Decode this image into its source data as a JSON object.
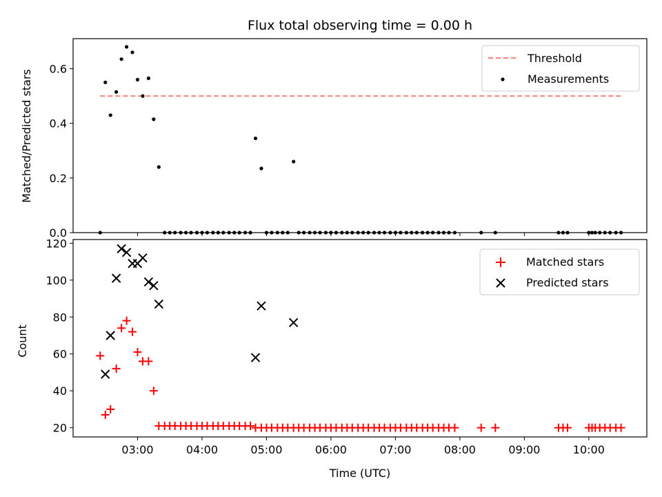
{
  "chart_data": [
    {
      "type": "scatter",
      "title": "Flux total observing time = 0.00 h",
      "xlabel": "",
      "ylabel": "Matched/Predicted stars",
      "xlim": [
        2.0,
        10.9
      ],
      "ylim": [
        0.0,
        0.71
      ],
      "yticks": [
        {
          "v": 0.0,
          "label": "0.0"
        },
        {
          "v": 0.2,
          "label": "0.2"
        },
        {
          "v": 0.4,
          "label": "0.4"
        },
        {
          "v": 0.6,
          "label": "0.6"
        }
      ],
      "legend_position": "upper right",
      "threshold": {
        "name": "Threshold",
        "value": 0.5,
        "x_start": 2.42,
        "x_end": 10.52,
        "color": "#ff7f7f"
      },
      "measurements": {
        "name": "Measurements",
        "color": "#000000",
        "points": [
          [
            2.42,
            0.0
          ],
          [
            2.5,
            0.55
          ],
          [
            2.58,
            0.43
          ],
          [
            2.67,
            0.515
          ],
          [
            2.75,
            0.635
          ],
          [
            2.83,
            0.68
          ],
          [
            2.92,
            0.66
          ],
          [
            3.0,
            0.56
          ],
          [
            3.08,
            0.5
          ],
          [
            3.17,
            0.565
          ],
          [
            3.25,
            0.415
          ],
          [
            3.33,
            0.24
          ],
          [
            3.42,
            0.0
          ],
          [
            3.5,
            0.0
          ],
          [
            3.58,
            0.0
          ],
          [
            3.67,
            0.0
          ],
          [
            3.75,
            0.0
          ],
          [
            3.83,
            0.0
          ],
          [
            3.92,
            0.0
          ],
          [
            4.0,
            0.0
          ],
          [
            4.08,
            0.0
          ],
          [
            4.17,
            0.0
          ],
          [
            4.25,
            0.0
          ],
          [
            4.33,
            0.0
          ],
          [
            4.42,
            0.0
          ],
          [
            4.5,
            0.0
          ],
          [
            4.58,
            0.0
          ],
          [
            4.67,
            0.0
          ],
          [
            4.75,
            0.0
          ],
          [
            4.83,
            0.345
          ],
          [
            4.92,
            0.235
          ],
          [
            5.0,
            0.0
          ],
          [
            5.08,
            0.0
          ],
          [
            5.17,
            0.0
          ],
          [
            5.25,
            0.0
          ],
          [
            5.33,
            0.0
          ],
          [
            5.42,
            0.26
          ],
          [
            5.5,
            0.0
          ],
          [
            5.58,
            0.0
          ],
          [
            5.67,
            0.0
          ],
          [
            5.75,
            0.0
          ],
          [
            5.83,
            0.0
          ],
          [
            5.92,
            0.0
          ],
          [
            6.0,
            0.0
          ],
          [
            6.08,
            0.0
          ],
          [
            6.17,
            0.0
          ],
          [
            6.25,
            0.0
          ],
          [
            6.33,
            0.0
          ],
          [
            6.42,
            0.0
          ],
          [
            6.5,
            0.0
          ],
          [
            6.58,
            0.0
          ],
          [
            6.67,
            0.0
          ],
          [
            6.75,
            0.0
          ],
          [
            6.83,
            0.0
          ],
          [
            6.92,
            0.0
          ],
          [
            7.0,
            0.0
          ],
          [
            7.08,
            0.0
          ],
          [
            7.17,
            0.0
          ],
          [
            7.25,
            0.0
          ],
          [
            7.33,
            0.0
          ],
          [
            7.42,
            0.0
          ],
          [
            7.5,
            0.0
          ],
          [
            7.58,
            0.0
          ],
          [
            7.67,
            0.0
          ],
          [
            7.75,
            0.0
          ],
          [
            7.83,
            0.0
          ],
          [
            7.92,
            0.0
          ],
          [
            8.33,
            0.0
          ],
          [
            8.55,
            0.0
          ],
          [
            9.53,
            0.0
          ],
          [
            9.6,
            0.0
          ],
          [
            9.67,
            0.0
          ],
          [
            10.0,
            0.0
          ],
          [
            10.05,
            0.0
          ],
          [
            10.1,
            0.0
          ],
          [
            10.17,
            0.0
          ],
          [
            10.25,
            0.0
          ],
          [
            10.33,
            0.0
          ],
          [
            10.42,
            0.0
          ],
          [
            10.5,
            0.0
          ]
        ]
      }
    },
    {
      "type": "scatter",
      "title": "",
      "xlabel": "Time (UTC)",
      "ylabel": "Count",
      "xlim": [
        2.0,
        10.9
      ],
      "ylim": [
        15.0,
        122.0
      ],
      "yticks": [
        {
          "v": 20,
          "label": "20"
        },
        {
          "v": 40,
          "label": "40"
        },
        {
          "v": 60,
          "label": "60"
        },
        {
          "v": 80,
          "label": "80"
        },
        {
          "v": 100,
          "label": "100"
        },
        {
          "v": 120,
          "label": "120"
        }
      ],
      "xticks": [
        {
          "v": 3,
          "label": "03:00"
        },
        {
          "v": 4,
          "label": "04:00"
        },
        {
          "v": 5,
          "label": "05:00"
        },
        {
          "v": 6,
          "label": "06:00"
        },
        {
          "v": 7,
          "label": "07:00"
        },
        {
          "v": 8,
          "label": "08:00"
        },
        {
          "v": 9,
          "label": "09:00"
        },
        {
          "v": 10,
          "label": "10:00"
        }
      ],
      "legend_position": "upper right",
      "series": [
        {
          "name": "Matched stars",
          "marker": "plus",
          "color": "#ff0000",
          "points": [
            [
              2.42,
              59
            ],
            [
              2.5,
              27
            ],
            [
              2.58,
              30
            ],
            [
              2.67,
              52
            ],
            [
              2.75,
              74
            ],
            [
              2.83,
              78
            ],
            [
              2.92,
              72
            ],
            [
              3.0,
              61
            ],
            [
              3.08,
              56
            ],
            [
              3.17,
              56
            ],
            [
              3.25,
              40
            ],
            [
              3.33,
              21
            ],
            [
              3.42,
              21
            ],
            [
              3.5,
              21
            ],
            [
              3.58,
              21
            ],
            [
              3.67,
              21
            ],
            [
              3.75,
              21
            ],
            [
              3.83,
              21
            ],
            [
              3.92,
              21
            ],
            [
              4.0,
              21
            ],
            [
              4.08,
              21
            ],
            [
              4.17,
              21
            ],
            [
              4.25,
              21
            ],
            [
              4.33,
              21
            ],
            [
              4.42,
              21
            ],
            [
              4.5,
              21
            ],
            [
              4.58,
              21
            ],
            [
              4.67,
              21
            ],
            [
              4.75,
              21
            ],
            [
              4.83,
              20
            ],
            [
              4.92,
              20
            ],
            [
              5.0,
              20
            ],
            [
              5.08,
              20
            ],
            [
              5.17,
              20
            ],
            [
              5.25,
              20
            ],
            [
              5.33,
              20
            ],
            [
              5.42,
              20
            ],
            [
              5.5,
              20
            ],
            [
              5.58,
              20
            ],
            [
              5.67,
              20
            ],
            [
              5.75,
              20
            ],
            [
              5.83,
              20
            ],
            [
              5.92,
              20
            ],
            [
              6.0,
              20
            ],
            [
              6.08,
              20
            ],
            [
              6.17,
              20
            ],
            [
              6.25,
              20
            ],
            [
              6.33,
              20
            ],
            [
              6.42,
              20
            ],
            [
              6.5,
              20
            ],
            [
              6.58,
              20
            ],
            [
              6.67,
              20
            ],
            [
              6.75,
              20
            ],
            [
              6.83,
              20
            ],
            [
              6.92,
              20
            ],
            [
              7.0,
              20
            ],
            [
              7.08,
              20
            ],
            [
              7.17,
              20
            ],
            [
              7.25,
              20
            ],
            [
              7.33,
              20
            ],
            [
              7.42,
              20
            ],
            [
              7.5,
              20
            ],
            [
              7.58,
              20
            ],
            [
              7.67,
              20
            ],
            [
              7.75,
              20
            ],
            [
              7.83,
              20
            ],
            [
              7.92,
              20
            ],
            [
              8.33,
              20
            ],
            [
              8.55,
              20
            ],
            [
              9.53,
              20
            ],
            [
              9.6,
              20
            ],
            [
              9.67,
              20
            ],
            [
              10.0,
              20
            ],
            [
              10.05,
              20
            ],
            [
              10.1,
              20
            ],
            [
              10.17,
              20
            ],
            [
              10.25,
              20
            ],
            [
              10.33,
              20
            ],
            [
              10.42,
              20
            ],
            [
              10.5,
              20
            ]
          ]
        },
        {
          "name": "Predicted stars",
          "marker": "x",
          "color": "#000000",
          "points": [
            [
              2.5,
              49
            ],
            [
              2.58,
              70
            ],
            [
              2.67,
              101
            ],
            [
              2.75,
              117
            ],
            [
              2.83,
              115
            ],
            [
              2.92,
              109
            ],
            [
              3.0,
              109
            ],
            [
              3.08,
              112
            ],
            [
              3.17,
              99
            ],
            [
              3.25,
              97
            ],
            [
              3.33,
              87
            ],
            [
              4.83,
              58
            ],
            [
              4.92,
              86
            ],
            [
              5.42,
              77
            ]
          ]
        }
      ]
    }
  ]
}
